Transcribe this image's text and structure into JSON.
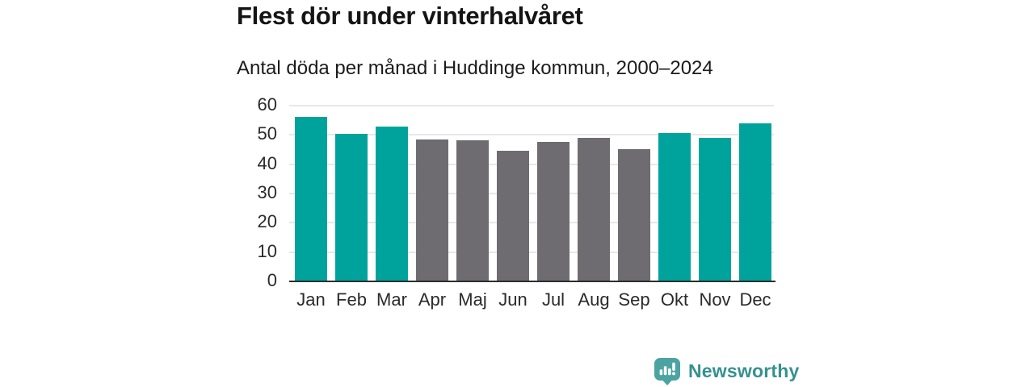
{
  "header": {
    "title": "Flest dör under vinterhalvåret",
    "subtitle": "Antal döda per månad i Huddinge kommun, 2000–2024"
  },
  "chart_data": {
    "type": "bar",
    "title": "Flest dör under vinterhalvåret",
    "subtitle": "Antal döda per månad i Huddinge kommun, 2000–2024",
    "categories": [
      "Jan",
      "Feb",
      "Mar",
      "Apr",
      "Maj",
      "Jun",
      "Jul",
      "Aug",
      "Sep",
      "Okt",
      "Nov",
      "Dec"
    ],
    "values": [
      55.9,
      50.1,
      52.5,
      48.1,
      47.9,
      44.3,
      47.3,
      48.8,
      44.8,
      50.5,
      48.6,
      53.7
    ],
    "winter_month_flags": [
      true,
      true,
      true,
      false,
      false,
      false,
      false,
      false,
      false,
      true,
      true,
      true
    ],
    "xlabel": "",
    "ylabel": "",
    "ylim": [
      0,
      60
    ],
    "yticks": [
      0,
      10,
      20,
      30,
      40,
      50,
      60
    ],
    "grid": true,
    "legend": "none",
    "colors": {
      "winter_bar": "#00a39c",
      "summer_bar": "#6e6c71",
      "gridline": "#e8e8ea",
      "axis_line": "#2d2d2d",
      "tick_text": "#2b2b2b"
    }
  },
  "footer": {
    "brand": "Newsworthy",
    "brand_color": "#35918e",
    "icon": "bar-chart-speech-bubble-icon",
    "icon_fill": "#4ba3a2"
  }
}
